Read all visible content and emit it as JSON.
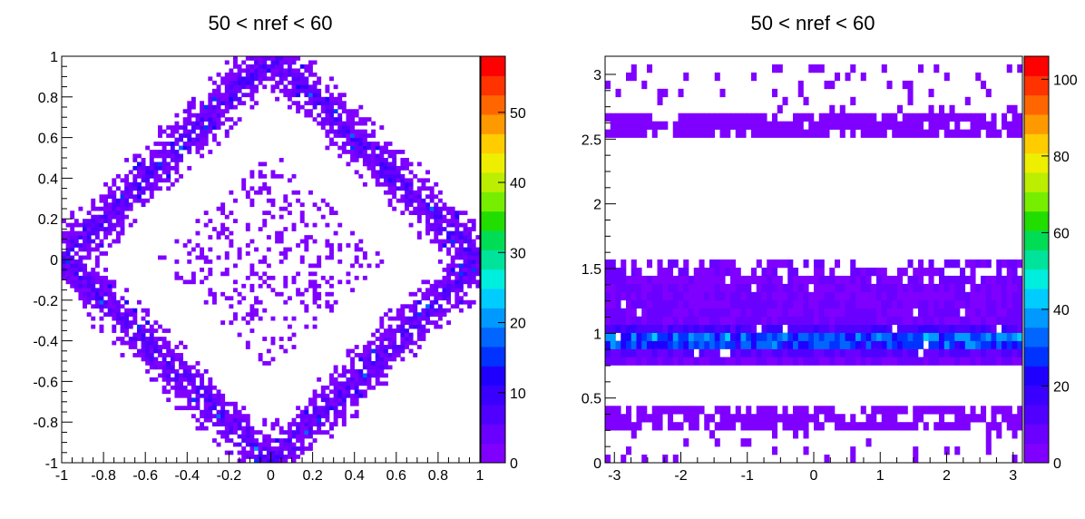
{
  "chart_data": [
    {
      "type": "heatmap",
      "title": "50 < nref < 60",
      "xlim": [
        -1,
        1
      ],
      "ylim": [
        -1,
        1
      ],
      "x_ticks": [
        "-1",
        "-0.8",
        "-0.6",
        "-0.4",
        "-0.2",
        "0",
        "0.2",
        "0.4",
        "0.6",
        "0.8",
        "1"
      ],
      "y_ticks": [
        "-1",
        "-0.8",
        "-0.6",
        "-0.4",
        "-0.2",
        "0",
        "0.2",
        "0.4",
        "0.6",
        "0.8",
        "1"
      ],
      "colorbar": {
        "min": 0,
        "max": 58,
        "ticks": [
          "0",
          "10",
          "20",
          "30",
          "40",
          "50"
        ]
      },
      "bins": [
        100,
        100
      ],
      "pattern": {
        "description_values": "outer diamond ring |x|+|y| ~ 1 (counts 1-16, peak ~22), inner sparse diamond |x|+|y| < 0.55 (counts ~1)",
        "outer_ring_center": 1.0,
        "outer_ring_halfwidth": 0.12,
        "inner_region_max": 0.55
      },
      "grid": false,
      "legend": "none"
    },
    {
      "type": "heatmap",
      "title": "50 < nref < 60",
      "xlim": [
        -3.14,
        3.14
      ],
      "ylim": [
        0,
        3.14
      ],
      "x_ticks": [
        "-3",
        "-2",
        "-1",
        "0",
        "1",
        "2",
        "3"
      ],
      "y_ticks": [
        "0",
        "0.5",
        "1",
        "1.5",
        "2",
        "2.5",
        "3"
      ],
      "colorbar": {
        "min": 0,
        "max": 106,
        "ticks": [
          "0",
          "20",
          "40",
          "60",
          "80",
          "100"
        ]
      },
      "bins": [
        80,
        50
      ],
      "pattern": {
        "bands": [
          {
            "y_from": 0.05,
            "y_to": 0.4,
            "level": "sparse, counts ~1-5"
          },
          {
            "y_from": 0.78,
            "y_to": 1.55,
            "level": "dense, counts ~1-45 with peak near y=0.95"
          },
          {
            "y_from": 2.5,
            "y_to": 3.05,
            "level": "sparse, counts ~1-5"
          }
        ]
      },
      "grid": false,
      "legend": "none"
    }
  ]
}
